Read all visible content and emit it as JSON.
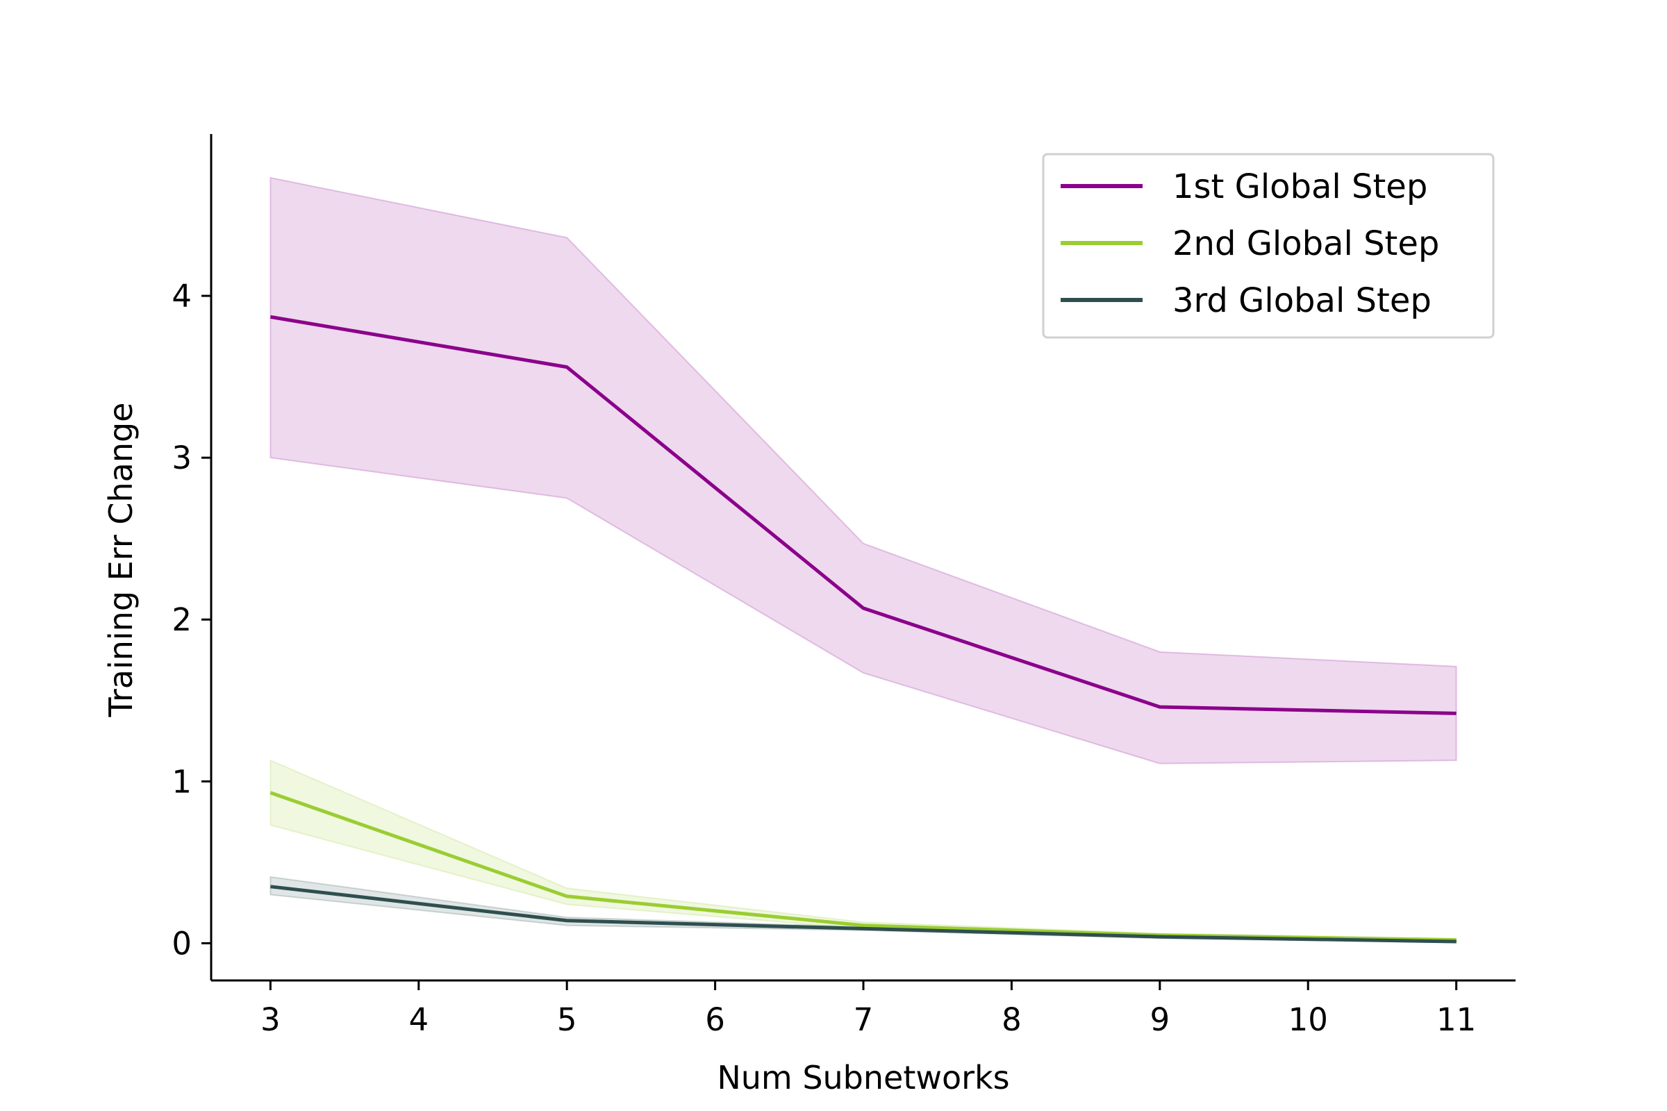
{
  "chart_data": {
    "type": "line",
    "title": "",
    "xlabel": "Num Subnetworks",
    "ylabel": "Training Err Change",
    "xlim": [
      2.6,
      11.4
    ],
    "ylim": [
      -0.23,
      5.0
    ],
    "xticks": [
      3,
      4,
      5,
      6,
      7,
      8,
      9,
      10,
      11
    ],
    "yticks": [
      0,
      1,
      2,
      3,
      4
    ],
    "grid": false,
    "legend_position": "top-right",
    "x": [
      3,
      5,
      7,
      9,
      11
    ],
    "series": [
      {
        "name": "1st Global Step",
        "color": "#8b008b",
        "values": [
          3.87,
          3.56,
          2.07,
          1.46,
          1.42
        ],
        "lower": [
          3.0,
          2.75,
          1.67,
          1.11,
          1.13
        ],
        "upper": [
          4.73,
          4.36,
          2.47,
          1.8,
          1.71
        ]
      },
      {
        "name": "2nd Global Step",
        "color": "#9acd32",
        "values": [
          0.93,
          0.29,
          0.11,
          0.05,
          0.02
        ],
        "lower": [
          0.73,
          0.24,
          0.09,
          0.04,
          0.01
        ],
        "upper": [
          1.13,
          0.34,
          0.13,
          0.06,
          0.03
        ]
      },
      {
        "name": "3rd Global Step",
        "color": "#2f4f4f",
        "values": [
          0.35,
          0.14,
          0.09,
          0.04,
          0.01
        ],
        "lower": [
          0.3,
          0.11,
          0.08,
          0.03,
          0.005
        ],
        "upper": [
          0.41,
          0.16,
          0.1,
          0.05,
          0.015
        ]
      }
    ]
  }
}
